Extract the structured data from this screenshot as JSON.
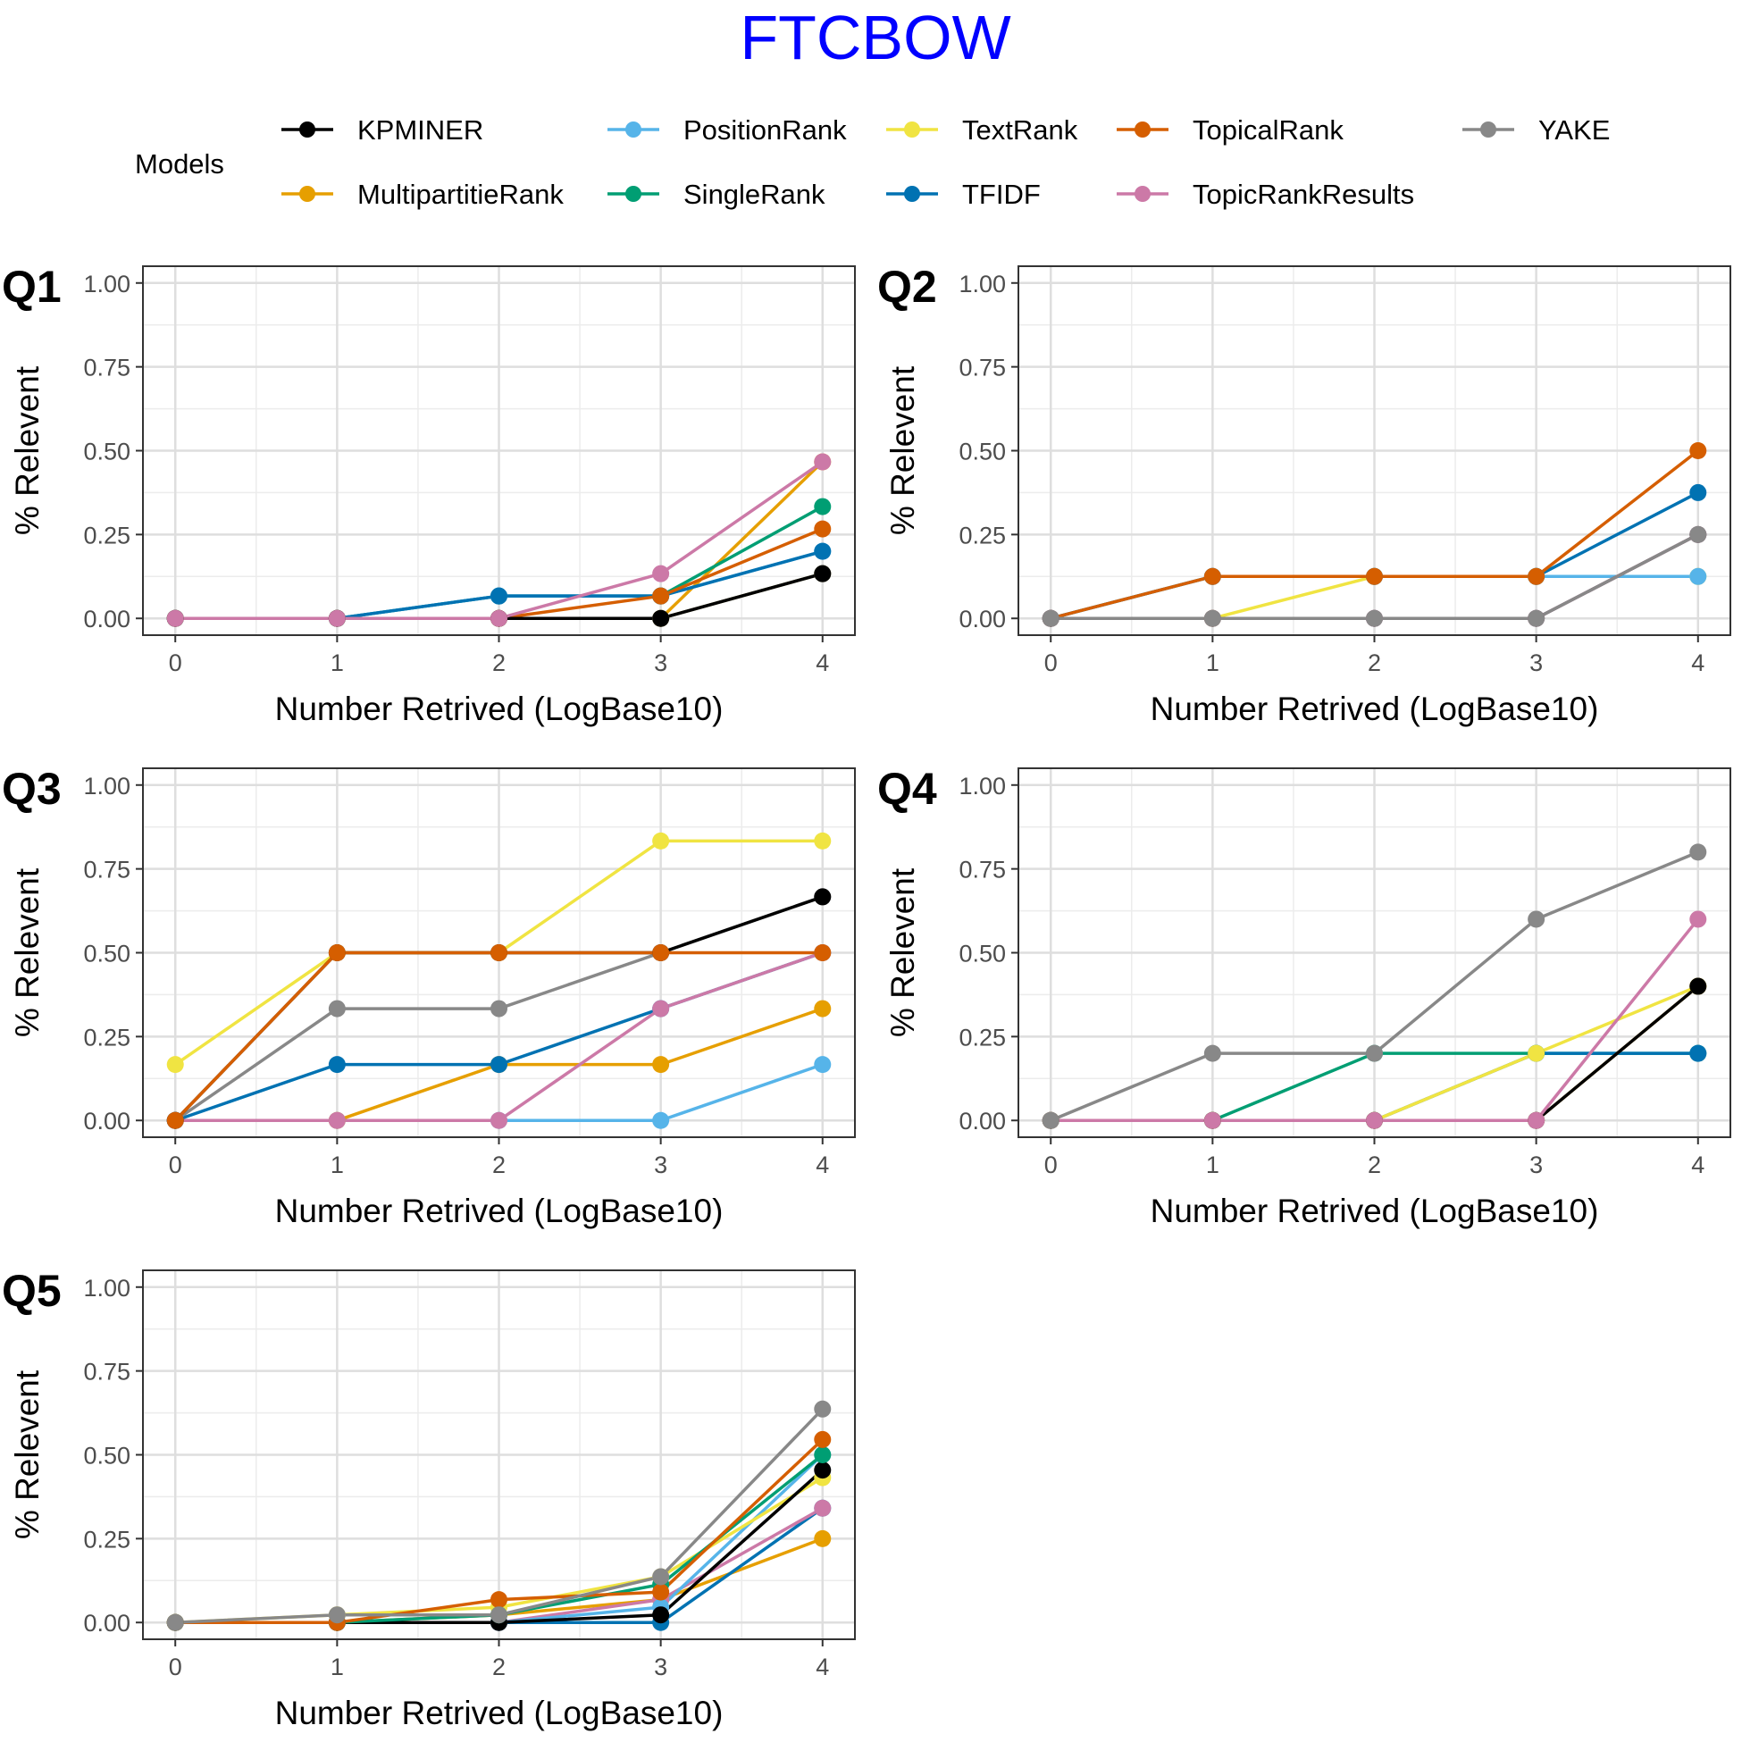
{
  "title": "FTCBOW",
  "title_color": "#0000ff",
  "legend": {
    "title": "Models",
    "items": [
      {
        "name": "KPMINER",
        "color": "#000000"
      },
      {
        "name": "MultipartitieRank",
        "color": "#E69F00"
      },
      {
        "name": "PositionRank",
        "color": "#56B4E9"
      },
      {
        "name": "SingleRank",
        "color": "#009E73"
      },
      {
        "name": "TextRank",
        "color": "#F0E442"
      },
      {
        "name": "TFIDF",
        "color": "#0072B2"
      },
      {
        "name": "TopicalRank",
        "color": "#D55E00"
      },
      {
        "name": "TopicRankResults",
        "color": "#CC79A7"
      },
      {
        "name": "YAKE",
        "color": "#888888"
      }
    ]
  },
  "chart_data": [
    {
      "type": "line",
      "panel": "Q1",
      "xlabel": "Number Retrived (LogBase10)",
      "ylabel": "% Relevent",
      "x": [
        0,
        1,
        2,
        3,
        4
      ],
      "xlim": [
        -0.2,
        4.2
      ],
      "ylim": [
        -0.05,
        1.05
      ],
      "xticks": [
        "0",
        "1",
        "2",
        "3",
        "4"
      ],
      "yticks": [
        "0.00",
        "0.25",
        "0.50",
        "0.75",
        "1.00"
      ],
      "grid": true,
      "series": [
        {
          "name": "MultipartitieRank",
          "values": [
            0,
            0,
            0,
            0,
            0.4667
          ]
        },
        {
          "name": "SingleRank",
          "values": [
            0,
            0,
            0.0667,
            0.0667,
            0.3333
          ]
        },
        {
          "name": "PositionRank",
          "values": [
            0,
            0,
            0.0667,
            0.0667,
            0.2
          ]
        },
        {
          "name": "TextRank",
          "values": [
            0,
            0,
            0,
            0,
            0.1333
          ]
        },
        {
          "name": "TFIDF",
          "values": [
            0,
            0,
            0.0667,
            0.0667,
            0.2
          ]
        },
        {
          "name": "TopicalRank",
          "values": [
            0,
            0,
            0,
            0.0667,
            0.2667
          ]
        },
        {
          "name": "YAKE",
          "values": [
            0,
            0,
            0,
            0,
            0.1333
          ]
        },
        {
          "name": "KPMINER",
          "values": [
            0,
            0,
            0,
            0,
            0.1333
          ]
        },
        {
          "name": "TopicRankResults",
          "values": [
            0,
            0,
            0,
            0.1333,
            0.4667
          ]
        }
      ]
    },
    {
      "type": "line",
      "panel": "Q2",
      "xlabel": "Number Retrived (LogBase10)",
      "ylabel": "% Relevent",
      "x": [
        0,
        1,
        2,
        3,
        4
      ],
      "xlim": [
        -0.2,
        4.2
      ],
      "ylim": [
        -0.05,
        1.05
      ],
      "xticks": [
        "0",
        "1",
        "2",
        "3",
        "4"
      ],
      "yticks": [
        "0.00",
        "0.25",
        "0.50",
        "0.75",
        "1.00"
      ],
      "grid": true,
      "series": [
        {
          "name": "TextRank",
          "values": [
            0,
            0,
            0.125,
            0.125,
            0.125
          ]
        },
        {
          "name": "PositionRank",
          "values": [
            0,
            0.125,
            0.125,
            0.125,
            0.125
          ]
        },
        {
          "name": "TFIDF",
          "values": [
            0,
            0.125,
            0.125,
            0.125,
            0.375
          ]
        },
        {
          "name": "TopicalRank",
          "values": [
            0,
            0.125,
            0.125,
            0.125,
            0.5
          ]
        },
        {
          "name": "KPMINER",
          "values": [
            0,
            0,
            0,
            0,
            0.25
          ]
        },
        {
          "name": "TopicRankResults",
          "values": [
            0,
            0,
            0,
            0,
            0.25
          ]
        },
        {
          "name": "YAKE",
          "values": [
            0,
            0,
            0,
            0,
            0.25
          ]
        }
      ]
    },
    {
      "type": "line",
      "panel": "Q3",
      "xlabel": "Number Retrived (LogBase10)",
      "ylabel": "% Relevent",
      "x": [
        0,
        1,
        2,
        3,
        4
      ],
      "xlim": [
        -0.2,
        4.2
      ],
      "ylim": [
        -0.05,
        1.05
      ],
      "xticks": [
        "0",
        "1",
        "2",
        "3",
        "4"
      ],
      "yticks": [
        "0.00",
        "0.25",
        "0.50",
        "0.75",
        "1.00"
      ],
      "grid": true,
      "series": [
        {
          "name": "TextRank",
          "values": [
            0.1667,
            0.5,
            0.5,
            0.8333,
            0.8333
          ]
        },
        {
          "name": "PositionRank",
          "values": [
            0,
            0,
            0,
            0,
            0.1667
          ]
        },
        {
          "name": "MultipartitieRank",
          "values": [
            0,
            0,
            0.1667,
            0.1667,
            0.3333
          ]
        },
        {
          "name": "TFIDF",
          "values": [
            0,
            0.1667,
            0.1667,
            0.3333,
            0.5
          ]
        },
        {
          "name": "TopicRankResults",
          "values": [
            0,
            0,
            0,
            0.3333,
            0.5
          ]
        },
        {
          "name": "YAKE",
          "values": [
            0,
            0.3333,
            0.3333,
            0.5,
            0.6667
          ]
        },
        {
          "name": "KPMINER",
          "values": [
            0,
            0.5,
            0.5,
            0.5,
            0.6667
          ]
        },
        {
          "name": "TopicalRank",
          "values": [
            0,
            0.5,
            0.5,
            0.5,
            0.5
          ]
        }
      ]
    },
    {
      "type": "line",
      "panel": "Q4",
      "xlabel": "Number Retrived (LogBase10)",
      "ylabel": "% Relevent",
      "x": [
        0,
        1,
        2,
        3,
        4
      ],
      "xlim": [
        -0.2,
        4.2
      ],
      "ylim": [
        -0.05,
        1.05
      ],
      "xticks": [
        "0",
        "1",
        "2",
        "3",
        "4"
      ],
      "yticks": [
        "0.00",
        "0.25",
        "0.50",
        "0.75",
        "1.00"
      ],
      "grid": true,
      "series": [
        {
          "name": "SingleRank",
          "values": [
            0,
            0,
            0.2,
            0.2,
            0.2
          ]
        },
        {
          "name": "TFIDF",
          "values": [
            0,
            0,
            0,
            0.2,
            0.2
          ]
        },
        {
          "name": "MultipartitieRank",
          "values": [
            0,
            0,
            0,
            0,
            0.4
          ]
        },
        {
          "name": "TextRank",
          "values": [
            0,
            0,
            0,
            0.2,
            0.4
          ]
        },
        {
          "name": "KPMINER",
          "values": [
            0,
            0,
            0,
            0,
            0.4
          ]
        },
        {
          "name": "TopicRankResults",
          "values": [
            0,
            0,
            0,
            0,
            0.6
          ]
        },
        {
          "name": "YAKE",
          "values": [
            0,
            0.2,
            0.2,
            0.6,
            0.8
          ]
        }
      ]
    },
    {
      "type": "line",
      "panel": "Q5",
      "xlabel": "Number Retrived (LogBase10)",
      "ylabel": "% Relevent",
      "x": [
        0,
        1,
        2,
        3,
        4
      ],
      "xlim": [
        -0.2,
        4.2
      ],
      "ylim": [
        -0.05,
        1.05
      ],
      "xticks": [
        "0",
        "1",
        "2",
        "3",
        "4"
      ],
      "yticks": [
        "0.00",
        "0.25",
        "0.50",
        "0.75",
        "1.00"
      ],
      "grid": true,
      "series": [
        {
          "name": "MultipartitieRank",
          "values": [
            0,
            0,
            0.0227,
            0.0682,
            0.25
          ]
        },
        {
          "name": "TFIDF",
          "values": [
            0,
            0,
            0,
            0,
            0.3409
          ]
        },
        {
          "name": "TopicRankResults",
          "values": [
            0,
            0,
            0,
            0.0682,
            0.3409
          ]
        },
        {
          "name": "PositionRank",
          "values": [
            0,
            0,
            0,
            0.0455,
            0.5
          ]
        },
        {
          "name": "TextRank",
          "values": [
            0,
            0.0227,
            0.0455,
            0.1364,
            0.4318
          ]
        },
        {
          "name": "KPMINER",
          "values": [
            0,
            0,
            0,
            0.0227,
            0.4545
          ]
        },
        {
          "name": "SingleRank",
          "values": [
            0,
            0,
            0.0227,
            0.1136,
            0.5
          ]
        },
        {
          "name": "TopicalRank",
          "values": [
            0,
            0,
            0.0682,
            0.0909,
            0.5455
          ]
        },
        {
          "name": "YAKE",
          "values": [
            0,
            0.0227,
            0.0227,
            0.1364,
            0.6364
          ]
        }
      ]
    }
  ]
}
